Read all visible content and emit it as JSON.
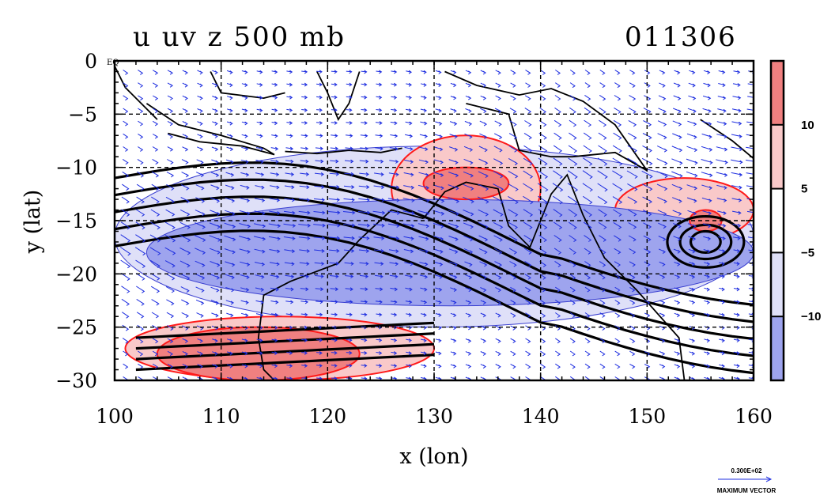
{
  "chart_data": {
    "type": "contour-vector-map",
    "title": "u uv z 500 mb",
    "time_label": "011306",
    "xlabel": "x (lon)",
    "ylabel": "y (lat)",
    "xlim": [
      100,
      160
    ],
    "ylim": [
      -30,
      0
    ],
    "x_ticks": [
      "100",
      "110",
      "120",
      "130",
      "140",
      "150",
      "160"
    ],
    "y_ticks": [
      "0",
      "−5",
      "−10",
      "−15",
      "−20",
      "−25",
      "−30"
    ],
    "colorbar": {
      "labels": [
        "10",
        "5",
        "−5",
        "−10"
      ],
      "bands": [
        {
          "range": "> 10",
          "color": "#f08080"
        },
        {
          "range": "5 to 10",
          "color": "#f9c9c9"
        },
        {
          "range": "−5 to 5",
          "color": "#ffffff"
        },
        {
          "range": "−10 to −5",
          "color": "#dfe0f8"
        },
        {
          "range": "< −10",
          "color": "#9ea4ee"
        }
      ]
    },
    "regions": [
      {
        "level": "5 to 10",
        "lon": [
          126,
          140
        ],
        "lat": [
          -17,
          -7
        ]
      },
      {
        "level": "> 10",
        "lon": [
          129,
          137
        ],
        "lat": [
          -13,
          -10
        ]
      },
      {
        "level": "5 to 10",
        "lon": [
          147,
          160
        ],
        "lat": [
          -17,
          -11
        ]
      },
      {
        "level": "> 10",
        "lon": [
          154,
          157
        ],
        "lat": [
          -16,
          -14
        ]
      },
      {
        "level": "5 to 10",
        "lon": [
          101,
          130
        ],
        "lat": [
          -30,
          -24
        ]
      },
      {
        "level": "> 10",
        "lon": [
          104,
          123
        ],
        "lat": [
          -30,
          -25
        ]
      },
      {
        "level": "−10 to −5",
        "lon": [
          100,
          160
        ],
        "lat": [
          -25,
          -8
        ]
      },
      {
        "level": "< −10",
        "lon": [
          103,
          160
        ],
        "lat": [
          -23,
          -13
        ]
      }
    ],
    "vector_reference": {
      "value_label": "0.300E+02",
      "caption": "MAXIMUM VECTOR"
    },
    "grid": true,
    "corner_label": "EQ"
  }
}
